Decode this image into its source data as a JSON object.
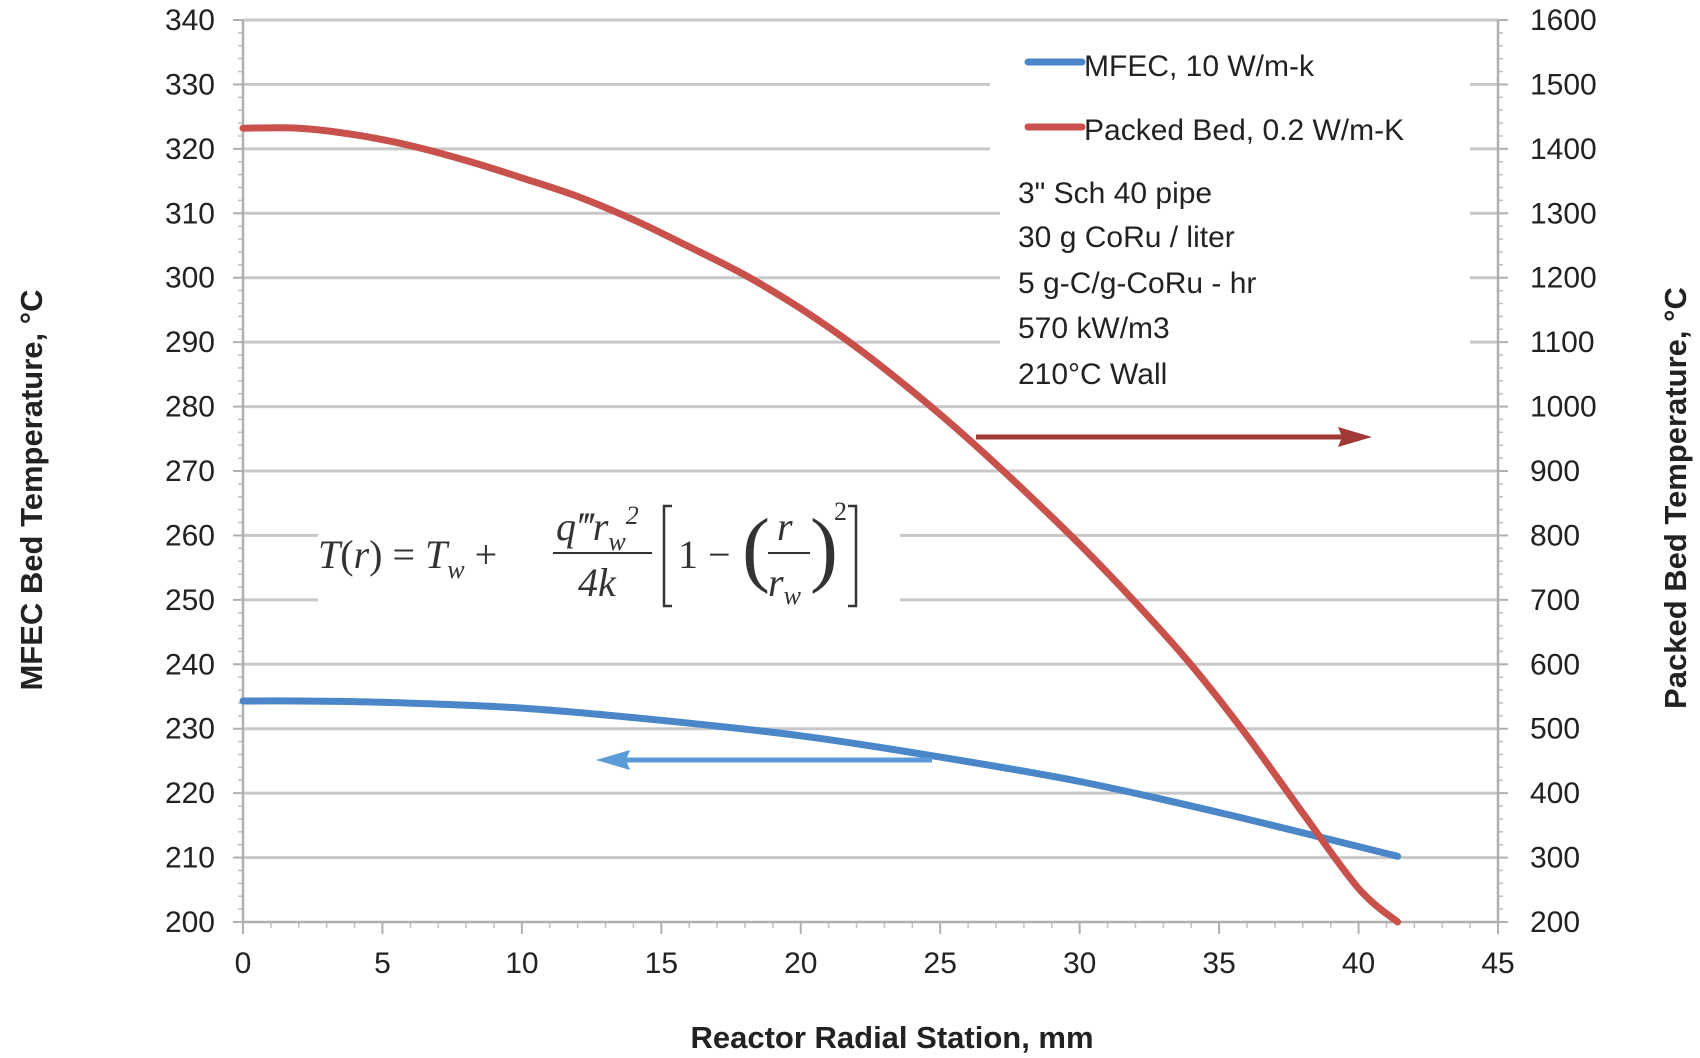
{
  "chart_data": {
    "type": "line",
    "xlabel": "Reactor Radial Station, mm",
    "ylabel_left": "MFEC Bed Temperature, °C",
    "ylabel_right": "Packed Bed Temperature, °C",
    "xlim": [
      0,
      45
    ],
    "ylim_left": [
      200,
      340
    ],
    "ylim_right": [
      200,
      1600
    ],
    "x_ticks": [
      "0",
      "5",
      "10",
      "15",
      "20",
      "25",
      "30",
      "35",
      "40",
      "45"
    ],
    "y_left_ticks": [
      "200",
      "210",
      "220",
      "230",
      "240",
      "250",
      "260",
      "270",
      "280",
      "290",
      "300",
      "310",
      "320",
      "330",
      "340"
    ],
    "y_right_ticks": [
      "200",
      "300",
      "400",
      "500",
      "600",
      "700",
      "800",
      "900",
      "1000",
      "1100",
      "1200",
      "1300",
      "1400",
      "1500",
      "1600"
    ],
    "grid": true,
    "legend_position": "top-right",
    "series": [
      {
        "name": "MFEC,  10 W/m-k",
        "axis": "left",
        "color": "#4a86c8",
        "x": [
          0,
          2,
          5,
          10,
          15,
          20,
          25,
          30,
          35,
          41.4
        ],
        "y": [
          234.3,
          234.3,
          234.1,
          233.2,
          231.3,
          228.9,
          225.6,
          221.8,
          217.0,
          210.2
        ]
      },
      {
        "name": "Packed Bed, 0.2 W/m-K",
        "axis": "right",
        "color": "#c9514b",
        "x": [
          0,
          2,
          4,
          6,
          8,
          10,
          12,
          14,
          16,
          18,
          20,
          22,
          24,
          26,
          28,
          30,
          32,
          34,
          36,
          38,
          40,
          41.4
        ],
        "y": [
          1432,
          1432,
          1422,
          1405,
          1382,
          1355,
          1326,
          1290,
          1248,
          1204,
          1152,
          1092,
          1024,
          950,
          870,
          786,
          696,
          599,
          489,
          369,
          252,
          200
        ]
      }
    ],
    "annotations": {
      "notes": [
        "3\" Sch 40 pipe",
        "30 g CoRu / liter",
        "5 g-C/g-CoRu - hr",
        "570 kW/m3",
        "210°C Wall"
      ],
      "equation": "T(r) = Tw + (q'''rw^2 / 4k)[1 − (r/rw)^2]",
      "arrow_right_color": "#a03a36",
      "arrow_left_color": "#5b9bd8"
    }
  }
}
